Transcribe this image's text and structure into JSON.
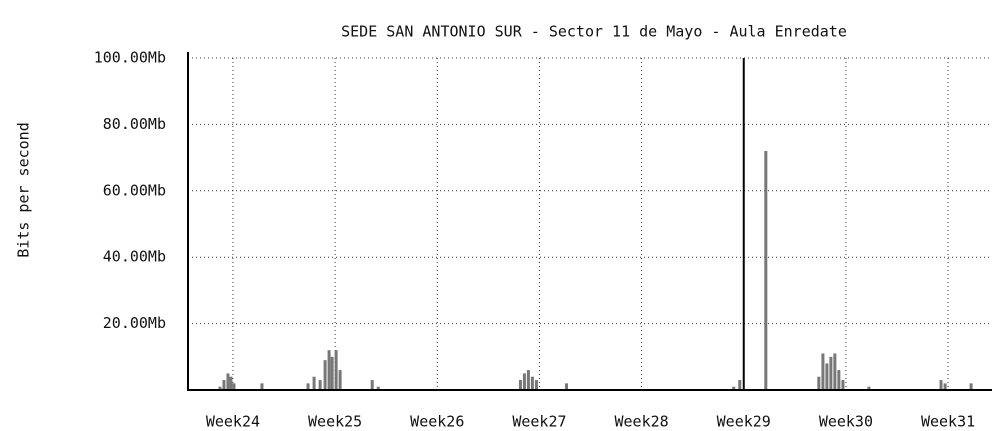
{
  "chart_data": {
    "type": "bar",
    "title": "SEDE SAN ANTONIO SUR - Sector 11 de Mayo - Aula Enredate",
    "ylabel": "Bits per second",
    "color": "#777777",
    "x": [
      23.873,
      23.912,
      23.951,
      23.98,
      24.01,
      24.284,
      24.735,
      24.794,
      24.853,
      24.902,
      24.941,
      24.971,
      25.01,
      25.049,
      25.363,
      25.422,
      26.814,
      26.853,
      26.892,
      26.931,
      26.971,
      27.265,
      28.902,
      28.961,
      29.216,
      29.735,
      29.775,
      29.814,
      29.853,
      29.892,
      29.931,
      29.971,
      30.225,
      30.931,
      30.971,
      31.225
    ],
    "values": [
      1,
      3,
      5,
      4,
      2,
      2,
      2,
      4,
      3,
      9,
      12,
      10,
      12,
      6,
      3,
      1,
      3,
      5,
      6,
      4,
      3,
      2,
      1,
      3,
      72,
      4,
      11,
      8,
      10,
      11,
      6,
      3,
      1,
      3,
      2,
      2
    ],
    "xlim": [
      23.56,
      31.43
    ],
    "xticks": [
      {
        "value": 24,
        "label": "Week24"
      },
      {
        "value": 25,
        "label": "Week25"
      },
      {
        "value": 26,
        "label": "Week26"
      },
      {
        "value": 27,
        "label": "Week27"
      },
      {
        "value": 28,
        "label": "Week28"
      },
      {
        "value": 29,
        "label": "Week29"
      },
      {
        "value": 30,
        "label": "Week30"
      },
      {
        "value": 31,
        "label": "Week31"
      }
    ],
    "ylim": [
      0,
      100
    ],
    "yticks": [
      {
        "value": 20,
        "label": "20.00Mb"
      },
      {
        "value": 40,
        "label": "40.00Mb"
      },
      {
        "value": 60,
        "label": "60.00Mb"
      },
      {
        "value": 80,
        "label": "80.00Mb"
      },
      {
        "value": 100,
        "label": "100.00Mb"
      }
    ],
    "grid": true,
    "marker": {
      "x": 29,
      "color": "#000000"
    }
  }
}
